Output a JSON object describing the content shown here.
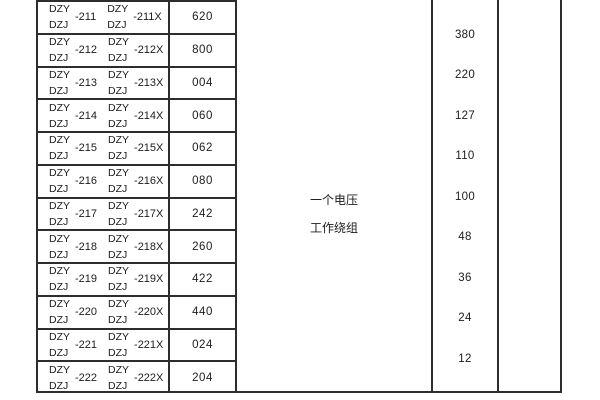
{
  "colors": {
    "border": "#2d2d2d",
    "text": "#1c1c1c",
    "background": "#ffffff"
  },
  "table": {
    "prefix_top": "DZY",
    "prefix_bottom": "DZJ",
    "rows": [
      {
        "num": "-211",
        "num_x": "-211X",
        "code": "620"
      },
      {
        "num": "-212",
        "num_x": "-212X",
        "code": "800"
      },
      {
        "num": "-213",
        "num_x": "-213X",
        "code": "004"
      },
      {
        "num": "-214",
        "num_x": "-214X",
        "code": "060"
      },
      {
        "num": "-215",
        "num_x": "-215X",
        "code": "062"
      },
      {
        "num": "-216",
        "num_x": "-216X",
        "code": "080"
      },
      {
        "num": "-217",
        "num_x": "-217X",
        "code": "242"
      },
      {
        "num": "-218",
        "num_x": "-218X",
        "code": "260"
      },
      {
        "num": "-219",
        "num_x": "-219X",
        "code": "422"
      },
      {
        "num": "-220",
        "num_x": "-220X",
        "code": "440"
      },
      {
        "num": "-221",
        "num_x": "-221X",
        "code": "024"
      },
      {
        "num": "-222",
        "num_x": "-222X",
        "code": "204"
      }
    ],
    "winding_label": {
      "line1": "一个电压",
      "line2": "工作绕组"
    },
    "voltages": [
      "380",
      "220",
      "127",
      "110",
      "100",
      "48",
      "36",
      "24",
      "12"
    ]
  }
}
